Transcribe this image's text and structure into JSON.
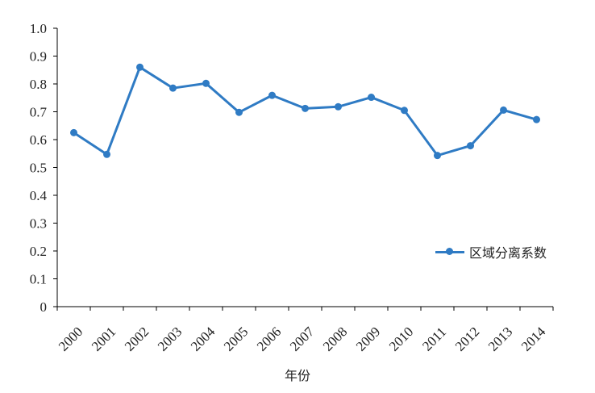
{
  "chart_data": {
    "type": "line",
    "title": "",
    "xlabel": "年份",
    "ylabel": "",
    "x": [
      "2000",
      "2001",
      "2002",
      "2003",
      "2004",
      "2005",
      "2006",
      "2007",
      "2008",
      "2009",
      "2010",
      "2011",
      "2012",
      "2013",
      "2014"
    ],
    "series": [
      {
        "name": "区域分离系数",
        "color": "#2F7BC4",
        "values": [
          0.625,
          0.547,
          0.86,
          0.785,
          0.802,
          0.698,
          0.759,
          0.712,
          0.718,
          0.752,
          0.705,
          0.543,
          0.578,
          0.706,
          0.672
        ]
      }
    ],
    "ylim": [
      0,
      1.0
    ],
    "yticks": [
      "0",
      "0.1",
      "0.2",
      "0.3",
      "0.4",
      "0.5",
      "0.6",
      "0.7",
      "0.8",
      "0.9",
      "1.0"
    ],
    "grid": false,
    "legend_position": "right"
  }
}
